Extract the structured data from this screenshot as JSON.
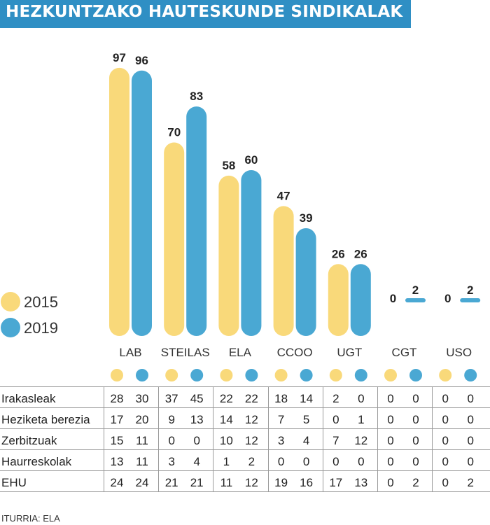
{
  "title": "HEZKUNTZAKO HAUTESKUNDE SINDIKALAK",
  "colors": {
    "y2015": "#f9d97a",
    "y2019": "#4aa8d3",
    "title_bg": "#2f8fc4"
  },
  "chart_data": {
    "type": "bar",
    "title": "HEZKUNTZAKO HAUTESKUNDE SINDIKALAK",
    "categories": [
      "LAB",
      "STEILAS",
      "ELA",
      "CCOO",
      "UGT",
      "CGT",
      "USO"
    ],
    "series": [
      {
        "name": "2015",
        "values": [
          97,
          70,
          58,
          47,
          26,
          0,
          0
        ]
      },
      {
        "name": "2019",
        "values": [
          96,
          83,
          60,
          39,
          26,
          2,
          2
        ]
      }
    ],
    "ylim": [
      0,
      100
    ],
    "legend": [
      "2015",
      "2019"
    ],
    "legend_position": "left"
  },
  "table": {
    "rows": [
      {
        "label": "Irakasleak",
        "values": [
          28,
          30,
          37,
          45,
          22,
          22,
          18,
          14,
          2,
          0,
          0,
          0,
          0,
          0
        ]
      },
      {
        "label": "Heziketa berezia",
        "values": [
          17,
          20,
          9,
          13,
          14,
          12,
          7,
          5,
          0,
          1,
          0,
          0,
          0,
          0
        ]
      },
      {
        "label": "Zerbitzuak",
        "values": [
          15,
          11,
          0,
          0,
          10,
          12,
          3,
          4,
          7,
          12,
          0,
          0,
          0,
          0
        ]
      },
      {
        "label": "Haurreskolak",
        "values": [
          13,
          11,
          3,
          4,
          1,
          2,
          0,
          0,
          0,
          0,
          0,
          0,
          0,
          0
        ]
      },
      {
        "label": "EHU",
        "values": [
          24,
          24,
          21,
          21,
          11,
          12,
          19,
          16,
          17,
          13,
          0,
          2,
          0,
          2
        ]
      }
    ]
  },
  "source": "ITURRIA: ELA"
}
